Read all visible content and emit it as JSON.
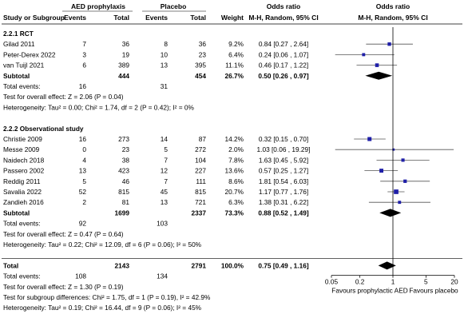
{
  "chart_data": {
    "type": "forest",
    "title": "",
    "headers": {
      "group_aed": "AED prophylaxis",
      "group_placebo": "Placebo",
      "study": "Study or Subgroup",
      "events": "Events",
      "total": "Total",
      "weight": "Weight",
      "or_col": "Odds ratio",
      "or_col_sub": "M-H, Random, 95% CI",
      "plot_col": "Odds ratio",
      "plot_col_sub": "M-H, Random, 95% CI"
    },
    "axis": {
      "scale": "log",
      "null_value": 1,
      "range": [
        0.05,
        20
      ],
      "ticks": [
        {
          "value": 0.05,
          "label": "0.05"
        },
        {
          "value": 0.2,
          "label": "0.2"
        },
        {
          "value": 1,
          "label": "1"
        },
        {
          "value": 5,
          "label": "5"
        },
        {
          "value": 20,
          "label": "20"
        }
      ],
      "label_left": "Favours prophylactic AED",
      "label_right": "Favours placebo"
    },
    "rows": [
      {
        "kind": "heading",
        "label": "2.2.1 RCT"
      },
      {
        "kind": "study",
        "study": "Gilad 2011",
        "e1": "7",
        "n1": "36",
        "e2": "8",
        "n2": "36",
        "weight": "9.2%",
        "ci_text": "0.84 [0.27 , 2.64]",
        "or": 0.84,
        "lo": 0.27,
        "hi": 2.64
      },
      {
        "kind": "study",
        "study": "Peter-Derex 2022",
        "e1": "3",
        "n1": "19",
        "e2": "10",
        "n2": "23",
        "weight": "6.4%",
        "ci_text": "0.24 [0.06 , 1.07]",
        "or": 0.24,
        "lo": 0.06,
        "hi": 1.07
      },
      {
        "kind": "study",
        "study": "van Tuijl 2021",
        "e1": "6",
        "n1": "389",
        "e2": "13",
        "n2": "395",
        "weight": "11.1%",
        "ci_text": "0.46 [0.17 , 1.22]",
        "or": 0.46,
        "lo": 0.17,
        "hi": 1.22
      },
      {
        "kind": "subtotal",
        "label": "Subtotal",
        "n1": "444",
        "n2": "454",
        "weight": "26.7%",
        "ci_text": "0.50 [0.26 , 0.97]",
        "or": 0.5,
        "lo": 0.26,
        "hi": 0.97
      },
      {
        "kind": "events",
        "label": "Total events:",
        "e1": "16",
        "e2": "31"
      },
      {
        "kind": "text",
        "text": "Test for overall effect: Z = 2.06 (P = 0.04)"
      },
      {
        "kind": "text",
        "text": "Heterogeneity: Tau² = 0.00; Chi² = 1.74, df = 2 (P = 0.42); I² = 0%"
      },
      {
        "kind": "blank"
      },
      {
        "kind": "heading",
        "label": "2.2.2 Observational study"
      },
      {
        "kind": "study",
        "study": "Christie 2009",
        "e1": "16",
        "n1": "273",
        "e2": "14",
        "n2": "87",
        "weight": "14.2%",
        "ci_text": "0.32 [0.15 , 0.70]",
        "or": 0.32,
        "lo": 0.15,
        "hi": 0.7
      },
      {
        "kind": "study",
        "study": "Messe 2009",
        "e1": "0",
        "n1": "23",
        "e2": "5",
        "n2": "272",
        "weight": "2.0%",
        "ci_text": "1.03 [0.06 , 19.29]",
        "or": 1.03,
        "lo": 0.06,
        "hi": 19.29
      },
      {
        "kind": "study",
        "study": "Naidech 2018",
        "e1": "4",
        "n1": "38",
        "e2": "7",
        "n2": "104",
        "weight": "7.8%",
        "ci_text": "1.63 [0.45 , 5.92]",
        "or": 1.63,
        "lo": 0.45,
        "hi": 5.92
      },
      {
        "kind": "study",
        "study": "Passero 2002",
        "e1": "13",
        "n1": "423",
        "e2": "12",
        "n2": "227",
        "weight": "13.6%",
        "ci_text": "0.57 [0.25 , 1.27]",
        "or": 0.57,
        "lo": 0.25,
        "hi": 1.27
      },
      {
        "kind": "study",
        "study": "Reddig 2011",
        "e1": "5",
        "n1": "46",
        "e2": "7",
        "n2": "111",
        "weight": "8.6%",
        "ci_text": "1.81 [0.54 , 6.03]",
        "or": 1.81,
        "lo": 0.54,
        "hi": 6.03
      },
      {
        "kind": "study",
        "study": "Savalia 2022",
        "e1": "52",
        "n1": "815",
        "e2": "45",
        "n2": "815",
        "weight": "20.7%",
        "ci_text": "1.17 [0.77 , 1.76]",
        "or": 1.17,
        "lo": 0.77,
        "hi": 1.76
      },
      {
        "kind": "study",
        "study": "Zandieh 2016",
        "e1": "2",
        "n1": "81",
        "e2": "13",
        "n2": "721",
        "weight": "6.3%",
        "ci_text": "1.38 [0.31 , 6.22]",
        "or": 1.38,
        "lo": 0.31,
        "hi": 6.22
      },
      {
        "kind": "subtotal",
        "label": "Subtotal",
        "n1": "1699",
        "n2": "2337",
        "weight": "73.3%",
        "ci_text": "0.88 [0.52 , 1.49]",
        "or": 0.88,
        "lo": 0.52,
        "hi": 1.49
      },
      {
        "kind": "events",
        "label": "Total events:",
        "e1": "92",
        "e2": "103"
      },
      {
        "kind": "text",
        "text": "Test for overall effect: Z = 0.47 (P = 0.64)"
      },
      {
        "kind": "text",
        "text": "Heterogeneity: Tau² = 0.22; Chi² = 12.09, df = 6 (P = 0.06); I² = 50%"
      },
      {
        "kind": "blank"
      },
      {
        "kind": "total",
        "label": "Total",
        "n1": "2143",
        "n2": "2791",
        "weight": "100.0%",
        "ci_text": "0.75 [0.49 , 1.16]",
        "or": 0.75,
        "lo": 0.49,
        "hi": 1.16
      },
      {
        "kind": "events",
        "label": "Total events:",
        "e1": "108",
        "e2": "134"
      },
      {
        "kind": "text",
        "text": "Test for overall effect: Z = 1.30 (P = 0.19)"
      },
      {
        "kind": "text",
        "text": "Test for subgroup differences: Chi² = 1.75, df = 1 (P = 0.19), I² = 42.9%"
      },
      {
        "kind": "text",
        "text": "Heterogeneity: Tau² = 0.19; Chi² = 16.44, df = 9 (P = 0.06); I² = 45%"
      }
    ]
  },
  "colors": {
    "text": "#000000",
    "study_marker": "#1f1fa8",
    "diamond": "#000000",
    "ci_line": "#555555",
    "divider": "#000000"
  }
}
